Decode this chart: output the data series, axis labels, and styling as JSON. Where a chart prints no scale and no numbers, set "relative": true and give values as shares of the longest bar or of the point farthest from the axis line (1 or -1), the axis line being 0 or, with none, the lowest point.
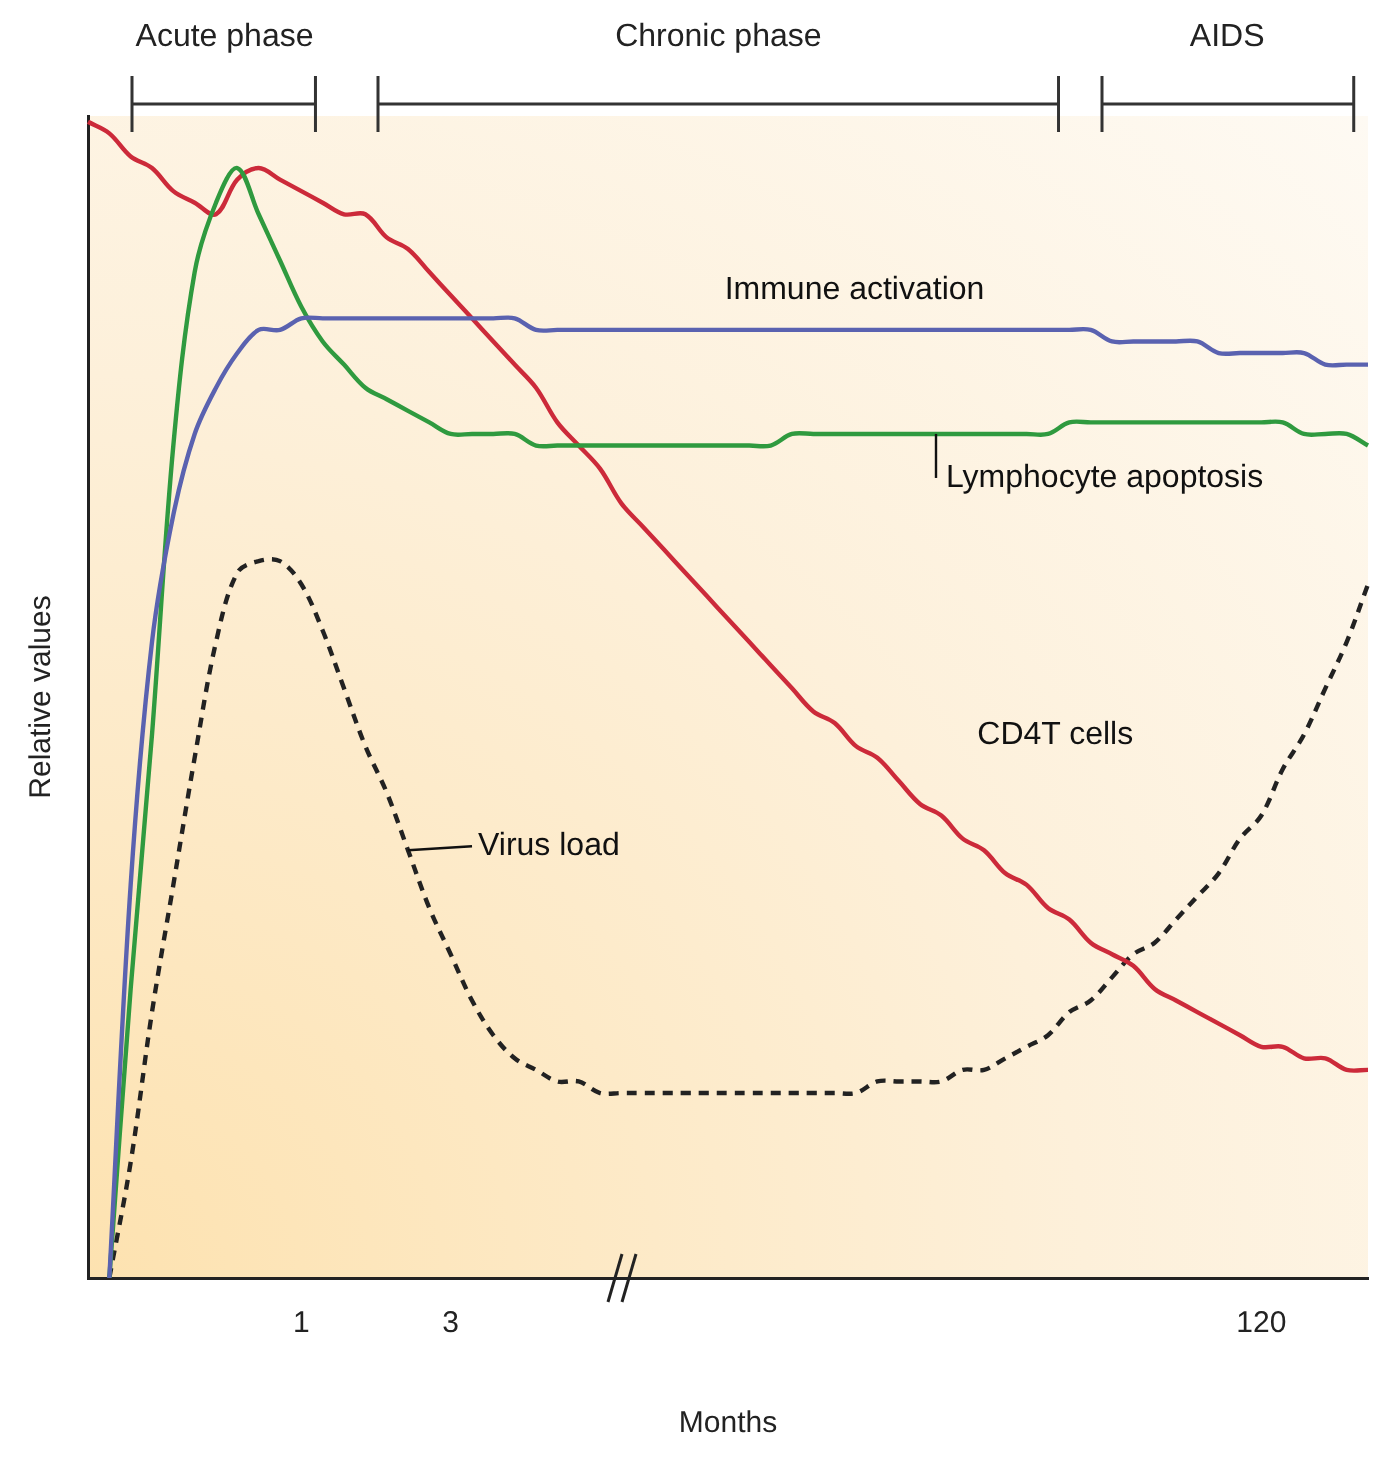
{
  "chart_data": {
    "type": "line",
    "relative": true,
    "xlabel": "Months",
    "ylabel": "Relative values",
    "marker": "none",
    "grid": false,
    "legend": false,
    "annotations": [
      "Acute phase",
      "Chronic phase",
      "AIDS"
    ],
    "categories": [
      null,
      null,
      null,
      null,
      null,
      null,
      null,
      null,
      null,
      null,
      "1",
      null,
      null,
      null,
      null,
      null,
      null,
      "3",
      null,
      null,
      null,
      null,
      null,
      null,
      null,
      null,
      null,
      null,
      null,
      null,
      null,
      null,
      null,
      null,
      null,
      null,
      null,
      null,
      null,
      null,
      null,
      null,
      null,
      null,
      null,
      null,
      null,
      null,
      null,
      null,
      null,
      null,
      null,
      null,
      null,
      "120",
      null,
      null,
      null,
      null,
      null
    ],
    "series": [
      {
        "name": "Immune activation",
        "color": "#5a62b0",
        "line_style": "solid",
        "values": [
          null,
          0,
          0.34,
          0.55,
          0.66,
          0.73,
          0.77,
          0.8,
          0.82,
          0.82,
          0.83,
          0.83,
          0.83,
          0.83,
          0.83,
          0.83,
          0.83,
          0.83,
          0.83,
          0.83,
          0.83,
          0.82,
          0.82,
          0.82,
          0.82,
          0.82,
          0.82,
          0.82,
          0.82,
          0.82,
          0.82,
          0.82,
          0.82,
          0.82,
          0.82,
          0.82,
          0.82,
          0.82,
          0.82,
          0.82,
          0.82,
          0.82,
          0.82,
          0.82,
          0.82,
          0.82,
          0.82,
          0.82,
          0.81,
          0.81,
          0.81,
          0.81,
          0.81,
          0.8,
          0.8,
          0.8,
          0.8,
          0.8,
          0.79,
          0.79,
          0.79
        ]
      },
      {
        "name": "Lymphocyte apoptosis",
        "color": "#2f9a3f",
        "line_style": "solid",
        "values": [
          null,
          0,
          0.25,
          0.47,
          0.72,
          0.87,
          0.93,
          0.96,
          0.92,
          0.88,
          0.84,
          0.81,
          0.79,
          0.77,
          0.76,
          0.75,
          0.74,
          0.73,
          0.73,
          0.73,
          0.73,
          0.72,
          0.72,
          0.72,
          0.72,
          0.72,
          0.72,
          0.72,
          0.72,
          0.72,
          0.72,
          0.72,
          0.72,
          0.73,
          0.73,
          0.73,
          0.73,
          0.73,
          0.73,
          0.73,
          0.73,
          0.73,
          0.73,
          0.73,
          0.73,
          0.73,
          0.74,
          0.74,
          0.74,
          0.74,
          0.74,
          0.74,
          0.74,
          0.74,
          0.74,
          0.74,
          0.74,
          0.73,
          0.73,
          0.73,
          0.72
        ]
      },
      {
        "name": "CD4T cells",
        "color": "#cc2a3a",
        "line_style": "solid",
        "values": [
          1,
          0.99,
          0.97,
          0.96,
          0.94,
          0.93,
          0.92,
          0.95,
          0.96,
          0.95,
          0.94,
          0.93,
          0.92,
          0.92,
          0.9,
          0.89,
          0.87,
          0.85,
          0.83,
          0.81,
          0.79,
          0.77,
          0.74,
          0.72,
          0.7,
          0.67,
          0.65,
          0.63,
          0.61,
          0.59,
          0.57,
          0.55,
          0.53,
          0.51,
          0.49,
          0.48,
          0.46,
          0.45,
          0.43,
          0.41,
          0.4,
          0.38,
          0.37,
          0.35,
          0.34,
          0.32,
          0.31,
          0.29,
          0.28,
          0.27,
          0.25,
          0.24,
          0.23,
          0.22,
          0.21,
          0.2,
          0.2,
          0.19,
          0.19,
          0.18,
          0.18
        ]
      },
      {
        "name": "Virus load",
        "color": "#222222",
        "line_style": "dashed",
        "values": [
          null,
          0,
          0.1,
          0.23,
          0.34,
          0.45,
          0.55,
          0.61,
          0.62,
          0.62,
          0.6,
          0.56,
          0.51,
          0.46,
          0.42,
          0.37,
          0.32,
          0.28,
          0.24,
          0.21,
          0.19,
          0.18,
          0.17,
          0.17,
          0.16,
          0.16,
          0.16,
          0.16,
          0.16,
          0.16,
          0.16,
          0.16,
          0.16,
          0.16,
          0.16,
          0.16,
          0.16,
          0.17,
          0.17,
          0.17,
          0.17,
          0.18,
          0.18,
          0.19,
          0.2,
          0.21,
          0.23,
          0.24,
          0.26,
          0.28,
          0.29,
          0.31,
          0.33,
          0.35,
          0.38,
          0.4,
          0.44,
          0.47,
          0.51,
          0.55,
          0.6
        ]
      }
    ]
  }
}
